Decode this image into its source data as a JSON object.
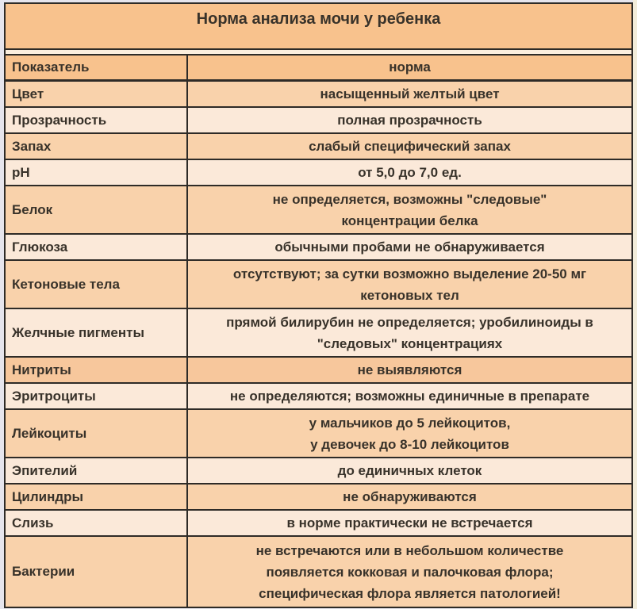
{
  "table": {
    "title": "Норма анализа мочи у ребенка",
    "columns": {
      "indicator": "Показатель",
      "norm": "норма"
    },
    "rows": [
      {
        "indicator": "Цвет",
        "norm": [
          "насыщенный желтый цвет"
        ],
        "shade": "medium"
      },
      {
        "indicator": "Прозрачность",
        "norm": [
          "полная прозрачность"
        ],
        "shade": "light"
      },
      {
        "indicator": "Запах",
        "norm": [
          "слабый специфический запах"
        ],
        "shade": "medium"
      },
      {
        "indicator": "pH",
        "norm": [
          "от 5,0 до 7,0 ед."
        ],
        "shade": "light"
      },
      {
        "indicator": "Белок",
        "norm": [
          "не определяется, возможны \"следовые\"",
          "концентрации белка"
        ],
        "shade": "medium"
      },
      {
        "indicator": "Глюкоза",
        "norm": [
          "обычными пробами не обнаруживается"
        ],
        "shade": "light"
      },
      {
        "indicator": "Кетоновые тела",
        "norm": [
          "отсутствуют; за сутки возможно выделение 20-50 мг",
          "кетоновых тел"
        ],
        "shade": "medium"
      },
      {
        "indicator": "Желчные пигменты",
        "norm": [
          "прямой билирубин не определяется; уробилиноиды в",
          "\"следовых\" концентрациях"
        ],
        "shade": "light"
      },
      {
        "indicator": "Нитриты",
        "norm": [
          "не выявляются"
        ],
        "shade": "dark"
      },
      {
        "indicator": "Эритроциты",
        "norm": [
          "не определяются; возможны единичные в препарате"
        ],
        "shade": "light"
      },
      {
        "indicator": "Лейкоциты",
        "norm": [
          "у мальчиков до 5 лейкоцитов,",
          "у девочек до 8-10 лейкоцитов"
        ],
        "shade": "medium"
      },
      {
        "indicator": "Эпителий",
        "norm": [
          "до единичных клеток"
        ],
        "shade": "light"
      },
      {
        "indicator": "Цилиндры",
        "norm": [
          "не обнаруживаются"
        ],
        "shade": "medium"
      },
      {
        "indicator": "Слизь",
        "norm": [
          "в норме практически не встречается"
        ],
        "shade": "light"
      },
      {
        "indicator": "Бактерии",
        "norm": [
          "не встречаются или в небольшом количестве",
          "появляется кокковая и палочковая флора;",
          "специфическая флора является патологией!"
        ],
        "shade": "medium"
      }
    ],
    "colors": {
      "header_bg": "#f8c28d",
      "row_medium": "#f9d2ab",
      "row_light": "#fbe9d9",
      "row_dark": "#f7c79c",
      "border": "#2e2b27",
      "text": "#38322a"
    }
  }
}
